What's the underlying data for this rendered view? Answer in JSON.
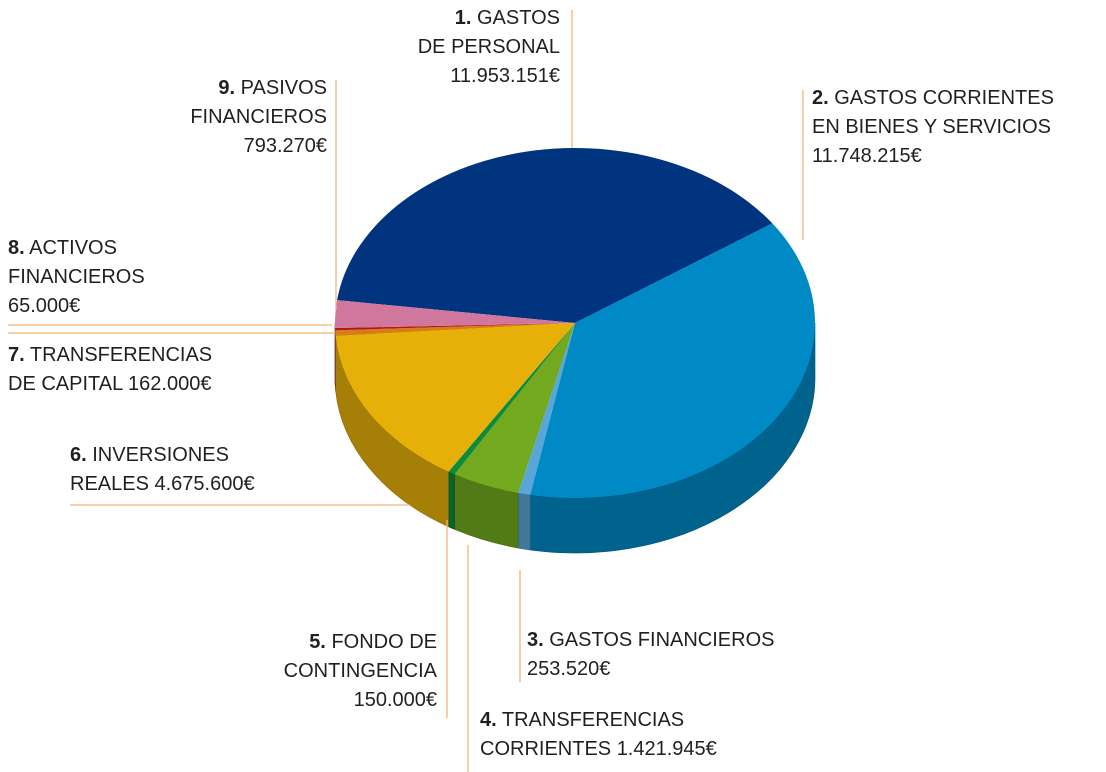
{
  "chart_data": {
    "type": "pie",
    "ordinals": [
      "1.",
      "2.",
      "3.",
      "4.",
      "5.",
      "6.",
      "7.",
      "8.",
      "9."
    ],
    "categories": [
      "GASTOS\nDE PERSONAL",
      "GASTOS CORRIENTES\nEN BIENES Y SERVICIOS",
      "GASTOS FINANCIEROS",
      "TRANSFERENCIAS\nCORRIENTES",
      "FONDO DE\nCONTINGENCIA",
      "INVERSIONES\nREALES",
      "TRANSFERENCIAS\nDE CAPITAL",
      "ACTIVOS\nFINANCIEROS",
      "PASIVOS\nFINANCIEROS"
    ],
    "values": [
      11953151,
      11748215,
      253520,
      1421945,
      150000,
      4675600,
      162000,
      65000,
      793270
    ],
    "value_labels": [
      "11.953.151€",
      "11.748.215€",
      "253.520€",
      "1.421.945€",
      "150.000€",
      "4.675.600€",
      "162.000€",
      "65.000€",
      "793.270€"
    ],
    "colors": [
      "#00347f",
      "#008ac5",
      "#5aa6d6",
      "#72a91e",
      "#0d8a3a",
      "#e7b008",
      "#d57f12",
      "#b5161b",
      "#d1779e"
    ]
  }
}
